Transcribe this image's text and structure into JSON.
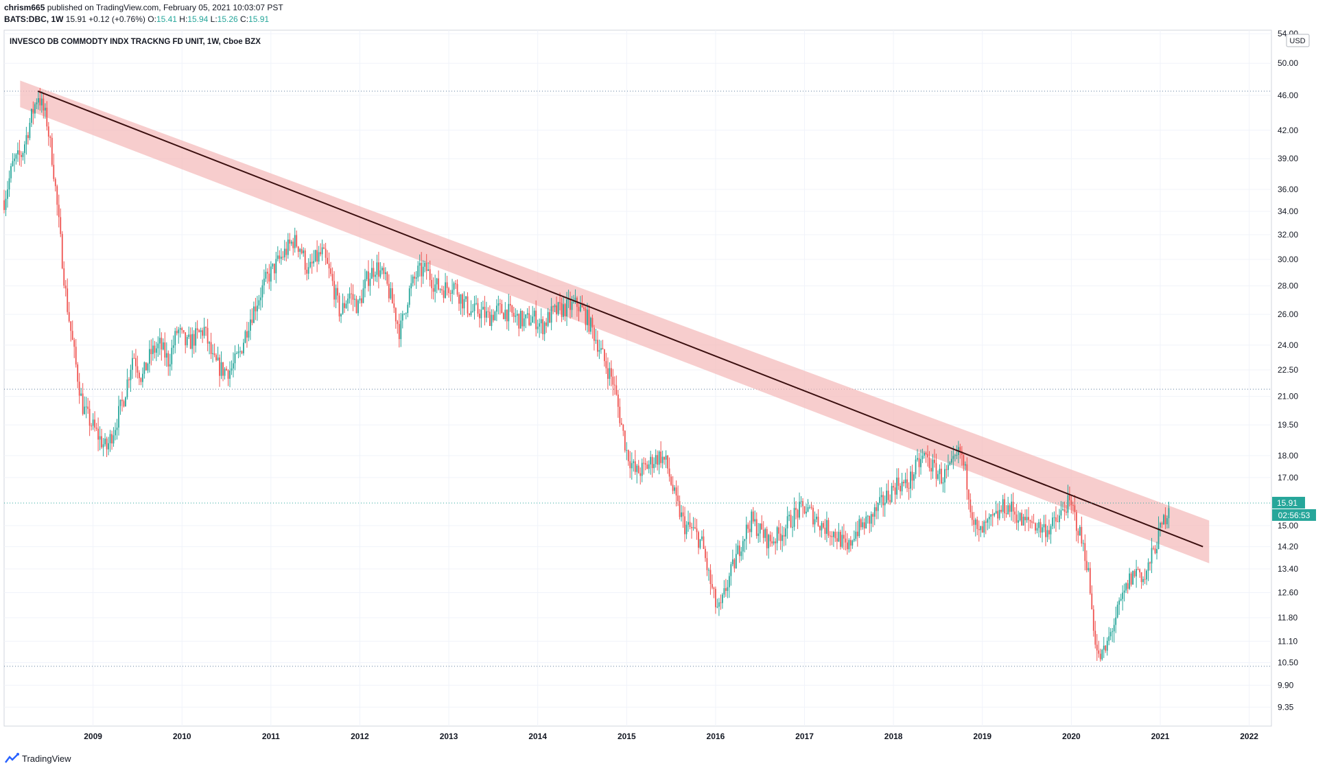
{
  "header": {
    "author": "chrism665",
    "published_text": "published on TradingView.com, February 05, 2021 10:03:07 PST",
    "symbol": "BATS:DBC, 1W",
    "last": "15.91",
    "change": "+0.12 (+0.76%)",
    "o_label": "O:",
    "o_value": "15.41",
    "h_label": "H:",
    "h_value": "15.94",
    "l_label": "L:",
    "l_value": "15.26",
    "c_label": "C:",
    "c_value": "15.91"
  },
  "footer": {
    "brand": "TradingView"
  },
  "colors": {
    "up": "#26a69a",
    "down": "#ef5350",
    "band": "#f4b8b8",
    "trend": "#3b0f0f",
    "dotted": "#5b7a9a"
  },
  "chart_data": {
    "type": "candlestick",
    "title": "INVESCO DB COMMODTY INDX TRACKNG FD UNIT, 1W, Cboe BZX",
    "currency": "USD",
    "yscale": "log",
    "ylim": [
      8.9,
      54.5
    ],
    "xlim": [
      2008.0,
      2022.25
    ],
    "x_tick_labels": [
      "2009",
      "2010",
      "2011",
      "2012",
      "2013",
      "2014",
      "2015",
      "2016",
      "2017",
      "2018",
      "2019",
      "2020",
      "2021",
      "2022"
    ],
    "y_tick_labels": [
      "9.35",
      "9.90",
      "10.50",
      "11.10",
      "11.80",
      "12.60",
      "13.40",
      "14.20",
      "15.00",
      "17.00",
      "18.00",
      "19.50",
      "21.00",
      "22.50",
      "24.00",
      "26.00",
      "28.00",
      "30.00",
      "32.00",
      "34.00",
      "36.00",
      "39.00",
      "42.00",
      "46.00",
      "50.00",
      "54.00"
    ],
    "last_price_label": "15.91",
    "countdown_label": "02:56:53",
    "horizontal_levels": [
      46.5,
      21.4,
      10.4
    ],
    "trendline": {
      "x": [
        2008.38,
        2021.48
      ],
      "y": [
        46.5,
        14.2
      ]
    },
    "trend_channel": {
      "x": [
        2008.18,
        2021.55
      ],
      "y_upper": [
        47.8,
        15.2
      ],
      "y_lower": [
        44.6,
        13.6
      ]
    },
    "price_path": [
      [
        2008.0,
        35.0
      ],
      [
        2008.1,
        38.5
      ],
      [
        2008.2,
        39.5
      ],
      [
        2008.28,
        42.5
      ],
      [
        2008.38,
        46.2
      ],
      [
        2008.48,
        43.0
      ],
      [
        2008.55,
        38.5
      ],
      [
        2008.62,
        32.5
      ],
      [
        2008.7,
        27.0
      ],
      [
        2008.8,
        23.0
      ],
      [
        2008.88,
        20.5
      ],
      [
        2008.95,
        19.8
      ],
      [
        2009.05,
        19.0
      ],
      [
        2009.15,
        18.3
      ],
      [
        2009.25,
        19.5
      ],
      [
        2009.35,
        21.0
      ],
      [
        2009.45,
        23.5
      ],
      [
        2009.55,
        22.0
      ],
      [
        2009.65,
        23.5
      ],
      [
        2009.75,
        24.0
      ],
      [
        2009.85,
        23.0
      ],
      [
        2009.95,
        25.0
      ],
      [
        2010.05,
        24.0
      ],
      [
        2010.15,
        24.5
      ],
      [
        2010.25,
        25.0
      ],
      [
        2010.35,
        23.0
      ],
      [
        2010.45,
        22.5
      ],
      [
        2010.55,
        22.5
      ],
      [
        2010.65,
        23.5
      ],
      [
        2010.75,
        25.5
      ],
      [
        2010.85,
        27.0
      ],
      [
        2010.95,
        28.5
      ],
      [
        2011.05,
        29.5
      ],
      [
        2011.15,
        30.5
      ],
      [
        2011.25,
        31.5
      ],
      [
        2011.33,
        31.0
      ],
      [
        2011.42,
        29.0
      ],
      [
        2011.5,
        30.0
      ],
      [
        2011.58,
        30.5
      ],
      [
        2011.68,
        28.5
      ],
      [
        2011.78,
        26.0
      ],
      [
        2011.88,
        27.5
      ],
      [
        2011.98,
        26.5
      ],
      [
        2012.08,
        28.5
      ],
      [
        2012.18,
        29.5
      ],
      [
        2012.28,
        28.5
      ],
      [
        2012.38,
        26.5
      ],
      [
        2012.45,
        24.8
      ],
      [
        2012.55,
        27.5
      ],
      [
        2012.65,
        29.0
      ],
      [
        2012.75,
        29.2
      ],
      [
        2012.85,
        28.0
      ],
      [
        2012.95,
        27.8
      ],
      [
        2013.05,
        28.2
      ],
      [
        2013.15,
        27.0
      ],
      [
        2013.25,
        26.2
      ],
      [
        2013.35,
        26.2
      ],
      [
        2013.45,
        25.8
      ],
      [
        2013.55,
        26.3
      ],
      [
        2013.65,
        26.2
      ],
      [
        2013.75,
        25.8
      ],
      [
        2013.85,
        25.5
      ],
      [
        2013.95,
        25.8
      ],
      [
        2014.05,
        25.2
      ],
      [
        2014.15,
        26.0
      ],
      [
        2014.25,
        26.3
      ],
      [
        2014.35,
        26.5
      ],
      [
        2014.45,
        26.7
      ],
      [
        2014.55,
        25.8
      ],
      [
        2014.65,
        24.5
      ],
      [
        2014.75,
        23.0
      ],
      [
        2014.85,
        21.8
      ],
      [
        2014.92,
        20.0
      ],
      [
        2015.0,
        18.2
      ],
      [
        2015.1,
        17.2
      ],
      [
        2015.2,
        17.4
      ],
      [
        2015.3,
        17.8
      ],
      [
        2015.38,
        18.0
      ],
      [
        2015.45,
        17.6
      ],
      [
        2015.55,
        16.0
      ],
      [
        2015.65,
        15.0
      ],
      [
        2015.75,
        14.8
      ],
      [
        2015.85,
        14.3
      ],
      [
        2015.92,
        13.2
      ],
      [
        2016.0,
        12.2
      ],
      [
        2016.05,
        12.0
      ],
      [
        2016.12,
        12.8
      ],
      [
        2016.2,
        13.5
      ],
      [
        2016.3,
        14.5
      ],
      [
        2016.4,
        15.2
      ],
      [
        2016.5,
        14.8
      ],
      [
        2016.6,
        14.4
      ],
      [
        2016.7,
        14.6
      ],
      [
        2016.8,
        15.0
      ],
      [
        2016.9,
        15.5
      ],
      [
        2017.0,
        15.7
      ],
      [
        2017.1,
        15.4
      ],
      [
        2017.2,
        15.0
      ],
      [
        2017.3,
        14.8
      ],
      [
        2017.4,
        14.5
      ],
      [
        2017.48,
        14.0
      ],
      [
        2017.55,
        14.7
      ],
      [
        2017.65,
        15.0
      ],
      [
        2017.75,
        15.3
      ],
      [
        2017.85,
        15.8
      ],
      [
        2017.95,
        16.3
      ],
      [
        2018.05,
        16.8
      ],
      [
        2018.15,
        16.6
      ],
      [
        2018.25,
        17.4
      ],
      [
        2018.35,
        18.0
      ],
      [
        2018.45,
        17.4
      ],
      [
        2018.55,
        17.0
      ],
      [
        2018.65,
        17.4
      ],
      [
        2018.75,
        18.2
      ],
      [
        2018.82,
        17.0
      ],
      [
        2018.88,
        15.6
      ],
      [
        2018.95,
        14.6
      ],
      [
        2019.05,
        15.0
      ],
      [
        2019.15,
        15.3
      ],
      [
        2019.25,
        15.8
      ],
      [
        2019.35,
        15.6
      ],
      [
        2019.45,
        15.1
      ],
      [
        2019.55,
        15.2
      ],
      [
        2019.65,
        14.9
      ],
      [
        2019.75,
        14.9
      ],
      [
        2019.85,
        15.2
      ],
      [
        2019.95,
        15.9
      ],
      [
        2020.02,
        15.6
      ],
      [
        2020.1,
        14.6
      ],
      [
        2020.18,
        13.6
      ],
      [
        2020.24,
        11.8
      ],
      [
        2020.3,
        10.6
      ],
      [
        2020.38,
        10.8
      ],
      [
        2020.46,
        11.5
      ],
      [
        2020.55,
        12.2
      ],
      [
        2020.65,
        13.0
      ],
      [
        2020.75,
        13.4
      ],
      [
        2020.82,
        13.0
      ],
      [
        2020.9,
        13.8
      ],
      [
        2020.97,
        14.5
      ],
      [
        2021.02,
        15.0
      ],
      [
        2021.07,
        15.5
      ],
      [
        2021.1,
        15.91
      ]
    ]
  }
}
